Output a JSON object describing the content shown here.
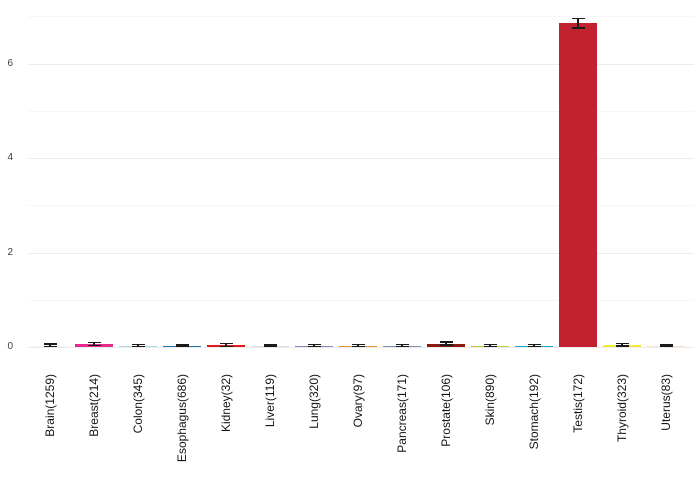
{
  "chart_data": {
    "type": "bar",
    "title": "",
    "xlabel": "",
    "ylabel": "",
    "categories": [
      "Brain(1259)",
      "Breast(214)",
      "Colon(345)",
      "Esophagus(686)",
      "Kidney(32)",
      "Liver(119)",
      "Lung(320)",
      "Ovary(97)",
      "Pancreas(171)",
      "Prostate(106)",
      "Skin(890)",
      "Stomach(192)",
      "Testis(172)",
      "Thyroid(323)",
      "Uterus(83)"
    ],
    "values": [
      0.03,
      0.06,
      0.03,
      0.03,
      0.04,
      0.02,
      0.03,
      0.03,
      0.03,
      0.07,
      0.03,
      0.03,
      6.85,
      0.04,
      0.02
    ],
    "errors": [
      0.025,
      0.03,
      0.02,
      0.015,
      0.03,
      0.015,
      0.02,
      0.02,
      0.02,
      0.035,
      0.02,
      0.02,
      0.1,
      0.025,
      0.015
    ],
    "bar_colors": [
      "#F4F4F1",
      "#E7298A",
      "#A6D9EE",
      "#1F78B4",
      "#E31A1C",
      "#DCDBEC",
      "#9B7EBE",
      "#E8912E",
      "#7B94B5",
      "#8B1A10",
      "#BFCC38",
      "#16ACE0",
      "#C2212F",
      "#F5EB31",
      "#F8E4D4"
    ],
    "error_bar_color": "#1a1a1a",
    "y_ticks": [
      0,
      2,
      4,
      6
    ],
    "gridline_values": [
      0,
      1,
      2,
      3,
      4,
      5,
      6,
      7
    ],
    "ylim": [
      0,
      7.25
    ],
    "grid": "horizontal",
    "legend": "none"
  }
}
